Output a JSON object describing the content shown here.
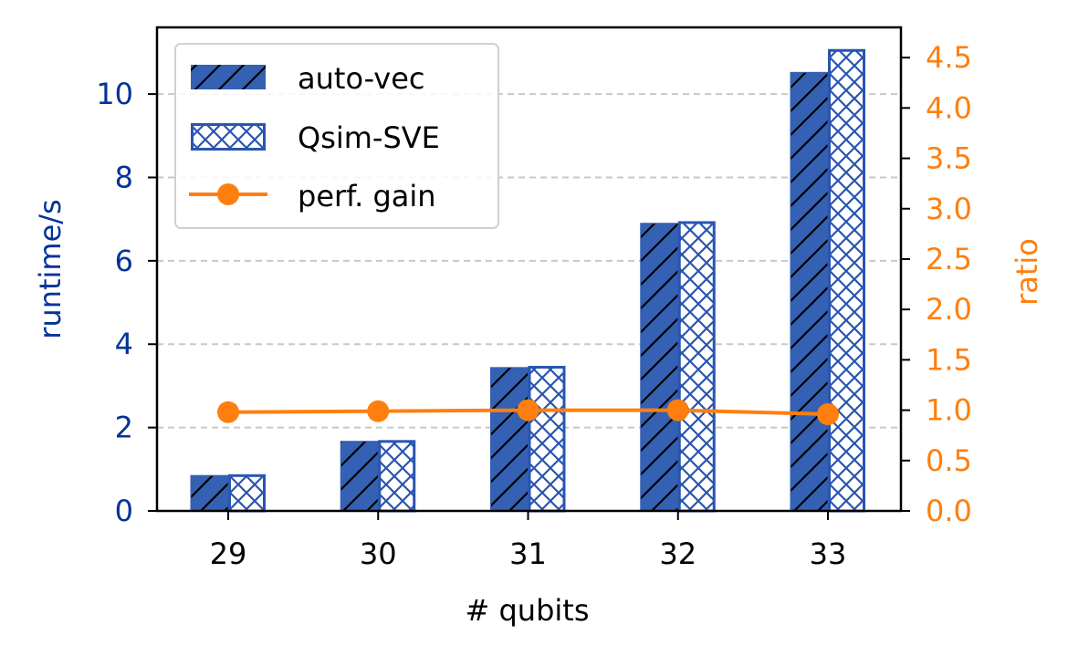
{
  "chart_data": {
    "type": "bar",
    "xlabel": "# qubits",
    "ylabel": "runtime/s",
    "y2label": "ratio",
    "categories": [
      "29",
      "30",
      "31",
      "32",
      "33"
    ],
    "ylim": [
      0,
      11.6
    ],
    "y2lim": [
      0,
      4.8
    ],
    "yticks": [
      "0",
      "2",
      "4",
      "6",
      "8",
      "10"
    ],
    "y2ticks": [
      "0.0",
      "0.5",
      "1.0",
      "1.5",
      "2.0",
      "2.5",
      "3.0",
      "3.5",
      "4.0",
      "4.5"
    ],
    "grid": "horizontal dashed",
    "legend_position": "top-left",
    "series": [
      {
        "name": "auto-vec",
        "kind": "bar",
        "hatch": "diagonal",
        "axis": "left",
        "values": [
          0.85,
          1.67,
          3.44,
          6.9,
          10.52
        ]
      },
      {
        "name": "Qsim-SVE",
        "kind": "bar",
        "hatch": "crosshatch",
        "axis": "left",
        "values": [
          0.88,
          1.7,
          3.48,
          6.95,
          11.08
        ]
      },
      {
        "name": "perf. gain",
        "kind": "line",
        "axis": "right",
        "values": [
          0.98,
          0.99,
          1.0,
          1.0,
          0.96
        ]
      }
    ],
    "colors": {
      "bar": "#3461b3",
      "bar_edge": "#2a55b0",
      "line": "#ff7f0e",
      "left_axis": "#003399",
      "right_axis": "#ff7f0e",
      "grid": "#c8c8c8"
    }
  }
}
